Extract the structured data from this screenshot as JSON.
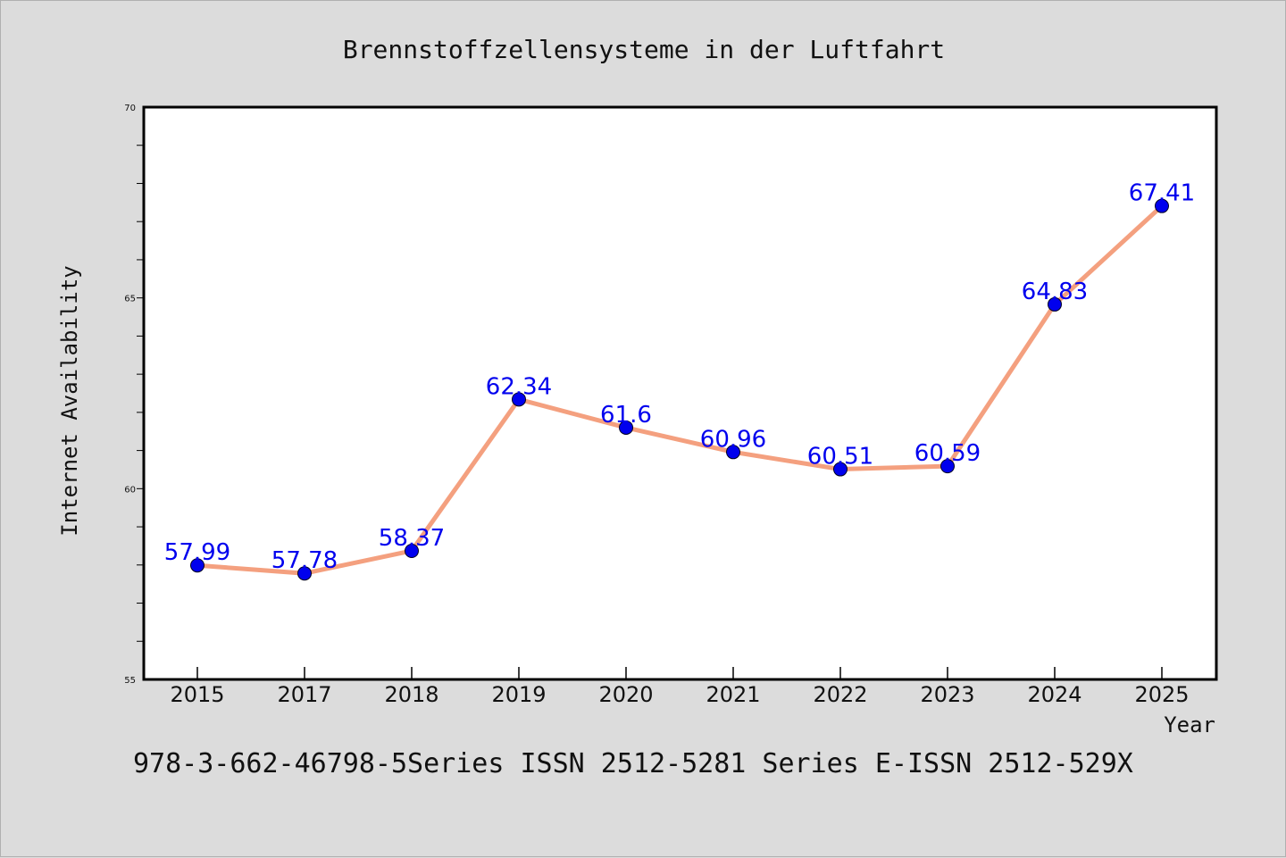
{
  "footer_text": "978-3-662-46798-5Series ISSN 2512-5281 Series E-ISSN 2512-529X",
  "colors": {
    "background": "#dcdcdc",
    "plot_background": "#ffffff",
    "line": "#f4a07f",
    "marker": "#0000ee",
    "data_label": "#0000ee"
  },
  "chart_data": {
    "type": "line",
    "title": "Brennstoffzellensysteme in der Luftfahrt",
    "xlabel": "Year",
    "ylabel": "Internet Availability",
    "categories": [
      "2015",
      "2017",
      "2018",
      "2019",
      "2020",
      "2021",
      "2022",
      "2023",
      "2024",
      "2025"
    ],
    "series": [
      {
        "values": [
          57.99,
          57.78,
          58.37,
          62.34,
          61.6,
          60.96,
          60.51,
          60.59,
          64.83,
          67.41
        ],
        "labels": [
          "57.99",
          "57.78",
          "58.37",
          "62.34",
          "61.6",
          "60.96",
          "60.51",
          "60.59",
          "64.83",
          "67.41"
        ]
      }
    ],
    "ylim": [
      55,
      70
    ],
    "yticks": [
      "55",
      "60",
      "65",
      "70"
    ],
    "grid": false,
    "legend": "none"
  }
}
